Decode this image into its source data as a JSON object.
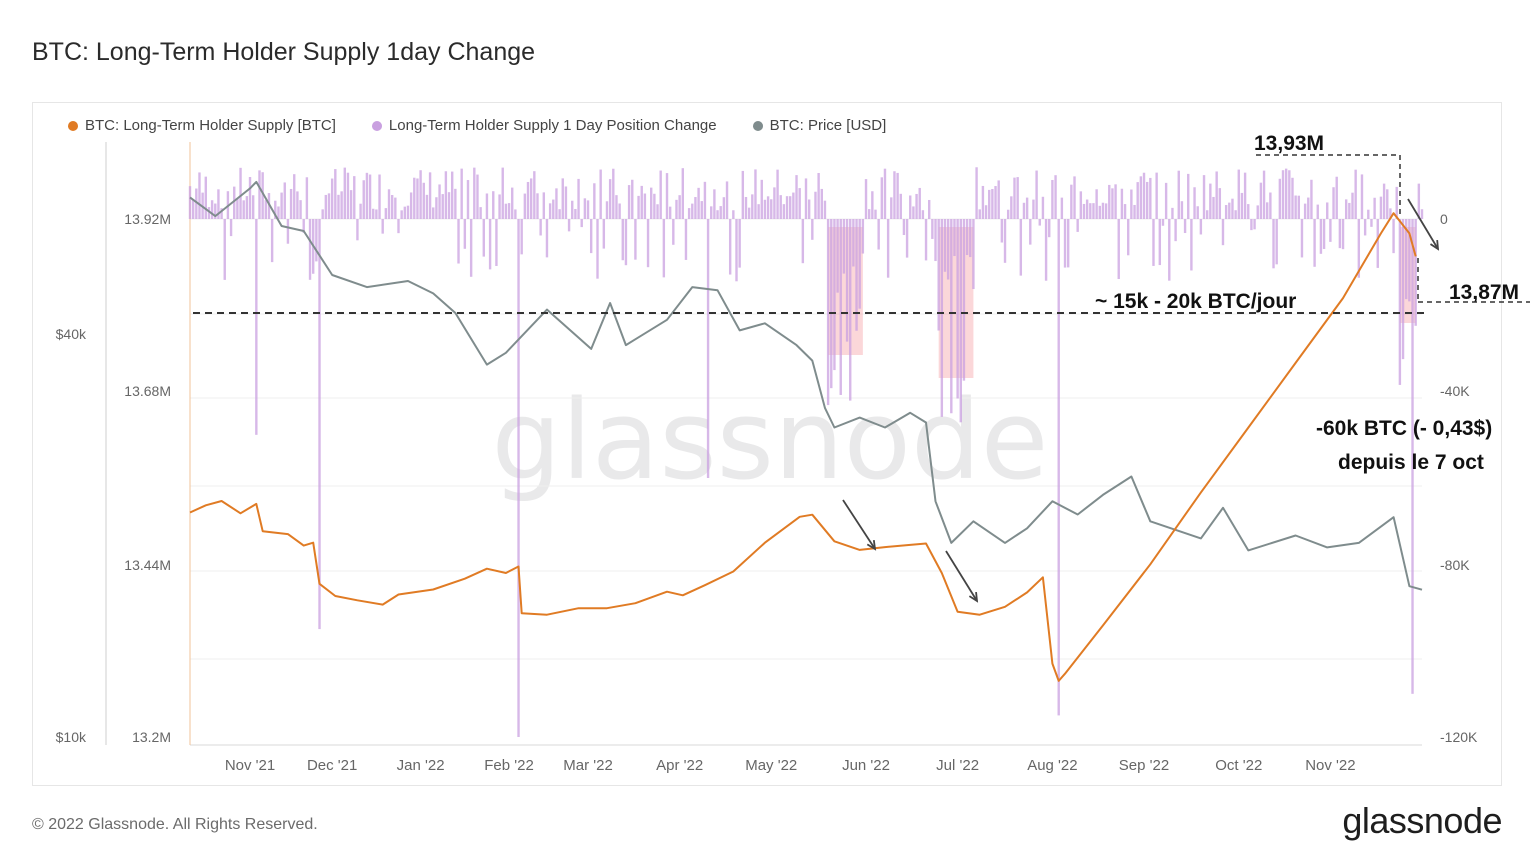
{
  "title": "BTC: Long-Term Holder Supply 1day Change",
  "footer": "© 2022 Glassnode. All Rights Reserved.",
  "logo": "glassnode",
  "watermark": "glassnode",
  "legend": [
    {
      "label": "BTC: Long-Term Holder Supply [BTC]",
      "color": "#e07b24"
    },
    {
      "label": "Long-Term Holder Supply 1 Day Position Change",
      "color": "#c9a0e0"
    },
    {
      "label": "BTC: Price [USD]",
      "color": "#7f8c8d"
    }
  ],
  "annotations": {
    "peak": "13,93M",
    "current": "13,87M",
    "rate": "~ 15k - 20k BTC/jour",
    "change_line1": "-60k BTC (- 0,43$)",
    "change_line2": "depuis le 7 oct"
  },
  "chart_data": {
    "type": "line",
    "x_ticks": [
      "Nov '21",
      "Dec '21",
      "Jan '22",
      "Feb '22",
      "Mar '22",
      "Apr '22",
      "May '22",
      "Jun '22",
      "Jul '22",
      "Aug '22",
      "Sep '22",
      "Oct '22",
      "Nov '22"
    ],
    "left_price_axis": {
      "ticks": [
        "$40k",
        "$10k"
      ],
      "scale": "log"
    },
    "left_supply_axis": {
      "ticks": [
        "13.92M",
        "13.68M",
        "13.44M",
        "13.2M"
      ],
      "range": [
        13.2,
        13.92
      ]
    },
    "right_change_axis": {
      "ticks": [
        "0",
        "-40K",
        "-80K",
        "-120K"
      ],
      "range": [
        -120000,
        0
      ]
    },
    "series": [
      {
        "name": "BTC: Long-Term Holder Supply [BTC]",
        "color": "#e07b24",
        "axis": "left_supply",
        "dates": [
          "2021-10-20",
          "2021-10-25",
          "2021-10-30",
          "2021-11-05",
          "2021-11-10",
          "2021-11-12",
          "2021-11-20",
          "2021-11-25",
          "2021-11-28",
          "2021-11-30",
          "2021-12-05",
          "2021-12-12",
          "2021-12-20",
          "2021-12-25",
          "2022-01-05",
          "2022-01-15",
          "2022-01-22",
          "2022-01-28",
          "2022-02-01",
          "2022-02-02",
          "2022-02-10",
          "2022-02-20",
          "2022-03-01",
          "2022-03-10",
          "2022-03-20",
          "2022-03-25",
          "2022-04-01",
          "2022-04-10",
          "2022-04-20",
          "2022-05-01",
          "2022-05-05",
          "2022-05-12",
          "2022-05-20",
          "2022-05-28",
          "2022-06-05",
          "2022-06-10",
          "2022-06-15",
          "2022-06-20",
          "2022-06-27",
          "2022-07-05",
          "2022-07-12",
          "2022-07-17",
          "2022-07-20",
          "2022-07-22",
          "2022-07-24",
          "2022-08-05",
          "2022-08-20",
          "2022-09-05",
          "2022-09-20",
          "2022-10-05",
          "2022-10-20",
          "2022-11-01",
          "2022-11-05",
          "2022-11-10",
          "2022-11-12"
        ],
        "values": [
          13.512,
          13.522,
          13.528,
          13.511,
          13.524,
          13.486,
          13.482,
          13.466,
          13.47,
          13.413,
          13.396,
          13.39,
          13.384,
          13.398,
          13.405,
          13.42,
          13.434,
          13.428,
          13.437,
          13.372,
          13.37,
          13.379,
          13.379,
          13.386,
          13.402,
          13.397,
          13.411,
          13.43,
          13.47,
          13.506,
          13.509,
          13.472,
          13.46,
          13.464,
          13.467,
          13.469,
          13.428,
          13.374,
          13.37,
          13.381,
          13.401,
          13.422,
          13.302,
          13.278,
          13.288,
          13.355,
          13.44,
          13.54,
          13.63,
          13.72,
          13.81,
          13.9,
          13.928,
          13.9,
          13.868
        ]
      },
      {
        "name": "BTC: Price [USD]",
        "color": "#7f8c8d",
        "axis": "left_price",
        "dates": [
          "2021-10-20",
          "2021-10-28",
          "2021-11-08",
          "2021-11-10",
          "2021-11-18",
          "2021-11-25",
          "2021-12-04",
          "2021-12-15",
          "2021-12-28",
          "2022-01-05",
          "2022-01-12",
          "2022-01-22",
          "2022-01-28",
          "2022-02-10",
          "2022-02-24",
          "2022-03-02",
          "2022-03-07",
          "2022-03-20",
          "2022-03-28",
          "2022-04-05",
          "2022-04-12",
          "2022-04-20",
          "2022-04-30",
          "2022-05-05",
          "2022-05-09",
          "2022-05-12",
          "2022-05-20",
          "2022-05-28",
          "2022-06-05",
          "2022-06-10",
          "2022-06-13",
          "2022-06-18",
          "2022-06-25",
          "2022-07-05",
          "2022-07-12",
          "2022-07-20",
          "2022-07-28",
          "2022-08-05",
          "2022-08-14",
          "2022-08-20",
          "2022-09-05",
          "2022-09-12",
          "2022-09-20",
          "2022-10-05",
          "2022-10-15",
          "2022-10-25",
          "2022-11-05",
          "2022-11-08",
          "2022-11-10",
          "2022-11-14"
        ],
        "values": [
          64000,
          60000,
          66000,
          67500,
          58000,
          57000,
          49000,
          47000,
          48000,
          46000,
          43000,
          36000,
          37500,
          43500,
          38000,
          44500,
          38500,
          42000,
          47000,
          46500,
          40500,
          41500,
          38500,
          36500,
          31000,
          29000,
          30000,
          29000,
          30500,
          29500,
          22500,
          19500,
          21000,
          19500,
          20500,
          22500,
          21500,
          23000,
          24500,
          21000,
          19800,
          22000,
          19000,
          20000,
          19200,
          19500,
          21300,
          18500,
          16800,
          16600
        ]
      },
      {
        "name": "Long-Term Holder Supply 1 Day Position Change",
        "color": "#c9a0e0",
        "axis": "right_change",
        "mark": "bar",
        "typical_daily_range": [
          -15000,
          12000
        ],
        "notable_spikes": [
          {
            "date": "2021-11-10",
            "value": -50000
          },
          {
            "date": "2021-11-30",
            "value": -95000
          },
          {
            "date": "2022-02-01",
            "value": -120000
          },
          {
            "date": "2022-04-02",
            "value": -60000
          },
          {
            "date": "2022-05-12",
            "value": -35000
          },
          {
            "date": "2022-06-18",
            "value": -45000
          },
          {
            "date": "2022-07-22",
            "value": -115000
          },
          {
            "date": "2022-11-11",
            "value": -110000
          }
        ]
      }
    ],
    "reference_line": {
      "label": "~ 15k - 20k BTC/jour",
      "change_value": -22000
    },
    "highlight_periods": [
      {
        "from": "2022-05-10",
        "to": "2022-05-21"
      },
      {
        "from": "2022-06-14",
        "to": "2022-06-25"
      },
      {
        "from": "2022-11-07",
        "to": "2022-11-12"
      }
    ],
    "grid": true,
    "legend_position": "top-left"
  }
}
